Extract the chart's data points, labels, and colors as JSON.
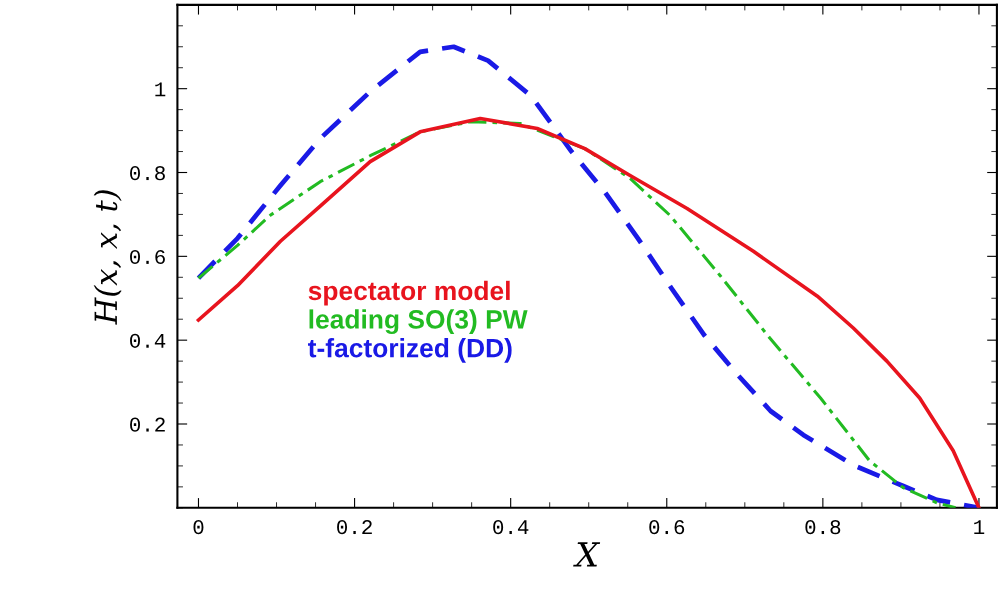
{
  "chart_data": {
    "type": "line",
    "xlabel": "X",
    "ylabel": "H(x, x, t)",
    "xlim": [
      -0.027,
      1.023
    ],
    "ylim": [
      0,
      1.2
    ],
    "xticks": [
      0,
      0.2,
      0.4,
      0.6,
      0.8,
      1
    ],
    "yticks": [
      0.2,
      0.4,
      0.6,
      0.8,
      1
    ],
    "grid": false,
    "legend": "center left",
    "series": [
      {
        "name": "spectator model",
        "color": "#e8141e",
        "line_style": "solid",
        "x": [
          0,
          0.05,
          0.105,
          0.156,
          0.22,
          0.284,
          0.361,
          0.434,
          0.495,
          0.553,
          0.626,
          0.711,
          0.793,
          0.839,
          0.882,
          0.924,
          0.967,
          1.0
        ],
        "values": [
          0.448,
          0.53,
          0.636,
          0.72,
          0.826,
          0.897,
          0.929,
          0.905,
          0.857,
          0.793,
          0.714,
          0.612,
          0.505,
          0.429,
          0.35,
          0.262,
          0.136,
          0
        ]
      },
      {
        "name": "leading SO(3) PW",
        "color": "#22bb22",
        "line_style": "dashdot",
        "x": [
          0,
          0.05,
          0.092,
          0.156,
          0.22,
          0.284,
          0.348,
          0.412,
          0.495,
          0.553,
          0.604,
          0.668,
          0.732,
          0.797,
          0.86,
          0.903,
          0.946,
          0.97
        ],
        "values": [
          0.548,
          0.626,
          0.698,
          0.778,
          0.84,
          0.897,
          0.921,
          0.917,
          0.857,
          0.786,
          0.698,
          0.555,
          0.405,
          0.262,
          0.112,
          0.048,
          0.012,
          0
        ]
      },
      {
        "name": "t-factorized (DD)",
        "color": "#1a1ae6",
        "line_style": "dashed",
        "x": [
          0,
          0.05,
          0.105,
          0.156,
          0.22,
          0.284,
          0.327,
          0.371,
          0.426,
          0.478,
          0.52,
          0.563,
          0.606,
          0.648,
          0.691,
          0.733,
          0.775,
          0.839,
          0.903,
          0.946,
          1.0
        ],
        "values": [
          0.548,
          0.643,
          0.769,
          0.881,
          0.993,
          1.088,
          1.1,
          1.067,
          0.983,
          0.85,
          0.755,
          0.643,
          0.524,
          0.412,
          0.317,
          0.231,
          0.174,
          0.102,
          0.052,
          0.019,
          0
        ]
      }
    ]
  }
}
